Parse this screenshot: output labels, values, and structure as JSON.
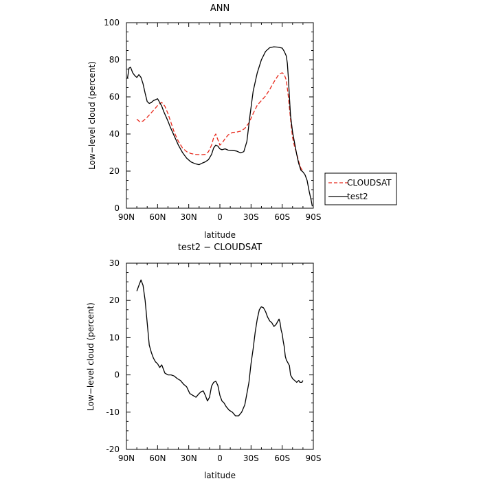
{
  "chart_data": [
    {
      "type": "line",
      "title": "ANN",
      "xlabel": "latitude",
      "ylabel": "Low−level cloud (percent)",
      "xlim": [
        90,
        -90
      ],
      "ylim": [
        0,
        100
      ],
      "x_ticks": [
        {
          "value": 90,
          "label": "90N"
        },
        {
          "value": 60,
          "label": "60N"
        },
        {
          "value": 30,
          "label": "30N"
        },
        {
          "value": 0,
          "label": "0"
        },
        {
          "value": -30,
          "label": "30S"
        },
        {
          "value": -60,
          "label": "60S"
        },
        {
          "value": -90,
          "label": "90S"
        }
      ],
      "y_ticks": [
        0,
        20,
        40,
        60,
        80,
        100
      ],
      "legend": "right",
      "series": [
        {
          "name": "CLOUDSAT",
          "color": "#e8291c",
          "dash": "dashed",
          "x": [
            80,
            77,
            74,
            70,
            66,
            62,
            59,
            56,
            53,
            50,
            47,
            44,
            40,
            36,
            32,
            28,
            24,
            20,
            17,
            14,
            11,
            8,
            6,
            4,
            2,
            0,
            -2,
            -5,
            -8,
            -12,
            -16,
            -20,
            -24,
            -28,
            -32,
            -36,
            -40,
            -44,
            -48,
            -52,
            -56,
            -58,
            -60,
            -62,
            -64,
            -66,
            -68,
            -70,
            -72,
            -74,
            -76,
            -78,
            -80
          ],
          "y": [
            48,
            46.5,
            47,
            49,
            51.5,
            54,
            56,
            57,
            55,
            51,
            46,
            41,
            36,
            32.5,
            30.5,
            29.5,
            29,
            28.9,
            28.8,
            29,
            30.5,
            34,
            38,
            40,
            37,
            34,
            35,
            37.5,
            39.5,
            40.8,
            41,
            41.5,
            43,
            46,
            51,
            55.5,
            58,
            60.5,
            64,
            68,
            71.5,
            72.5,
            73,
            72,
            69,
            60,
            48,
            38,
            33,
            29.5,
            25,
            21.5,
            20
          ]
        },
        {
          "name": "test2",
          "color": "#000000",
          "dash": "solid",
          "x": [
            89,
            87.5,
            86,
            84,
            82,
            80,
            78,
            76,
            74,
            72,
            70,
            68,
            66,
            64,
            62,
            60,
            58,
            56,
            54,
            52,
            50,
            48,
            44,
            40,
            36,
            32,
            28,
            24,
            20,
            17,
            14,
            11,
            8,
            6,
            4,
            2,
            0,
            -2,
            -5,
            -8,
            -12,
            -16,
            -20,
            -23,
            -26,
            -29,
            -32,
            -36,
            -40,
            -44,
            -48,
            -52,
            -56,
            -60,
            -62,
            -64,
            -65,
            -66,
            -67,
            -68,
            -70,
            -72,
            -74,
            -76,
            -78,
            -80,
            -82,
            -84,
            -86,
            -88,
            -89
          ],
          "y": [
            70,
            75.5,
            76,
            73,
            71.5,
            70.5,
            72,
            70.5,
            67,
            62,
            57.5,
            56.5,
            57,
            58,
            58.5,
            59,
            57,
            55,
            52,
            49.5,
            47,
            44,
            39,
            34,
            30,
            27,
            25,
            24,
            23.5,
            24.3,
            25,
            26.2,
            29,
            32.5,
            34,
            33.5,
            32,
            31.5,
            32,
            31.3,
            31.2,
            30.8,
            29.8,
            30.5,
            36,
            50,
            63,
            73,
            80,
            84.5,
            86.5,
            87,
            86.8,
            86.3,
            84.5,
            82,
            78,
            70,
            60,
            50,
            41,
            35,
            29,
            24,
            20.5,
            19.5,
            18,
            15,
            9,
            4,
            1
          ]
        }
      ]
    },
    {
      "type": "line",
      "title": "test2 − CLOUDSAT",
      "xlabel": "latitude",
      "ylabel": "Low−level cloud (percent)",
      "xlim": [
        90,
        -90
      ],
      "ylim": [
        -20,
        30
      ],
      "x_ticks": [
        {
          "value": 90,
          "label": "90N"
        },
        {
          "value": 60,
          "label": "60N"
        },
        {
          "value": 30,
          "label": "30N"
        },
        {
          "value": 0,
          "label": "0"
        },
        {
          "value": -30,
          "label": "30S"
        },
        {
          "value": -60,
          "label": "60S"
        },
        {
          "value": -90,
          "label": "90S"
        }
      ],
      "y_ticks": [
        -20,
        -10,
        0,
        10,
        20,
        30
      ],
      "series": [
        {
          "color": "#000000",
          "dash": "solid",
          "x": [
            80,
            78,
            76,
            74,
            72,
            70,
            68,
            66,
            64,
            62,
            60,
            58,
            56,
            53,
            50,
            47,
            44,
            41,
            38,
            35,
            32,
            29,
            26,
            23,
            20,
            18,
            16,
            14,
            12,
            10,
            8,
            6,
            4,
            2,
            0,
            -2,
            -4,
            -6,
            -9,
            -12,
            -15,
            -18,
            -21,
            -24,
            -26,
            -28,
            -30,
            -32,
            -34,
            -36,
            -38,
            -40,
            -42,
            -44,
            -46,
            -48,
            -50,
            -52,
            -54,
            -56,
            -57,
            -58,
            -59,
            -60,
            -61,
            -62,
            -63,
            -64,
            -65,
            -66,
            -67,
            -68,
            -70,
            -72,
            -74,
            -76,
            -77,
            -78,
            -79,
            -80
          ],
          "y": [
            22.5,
            24,
            25.5,
            24,
            20,
            14,
            8,
            6,
            4.5,
            3.5,
            3,
            2,
            2.7,
            0.5,
            0,
            0,
            -0.3,
            -1,
            -1.5,
            -2.5,
            -3.2,
            -5,
            -5.5,
            -6,
            -5,
            -4.5,
            -4.3,
            -5.5,
            -7,
            -6,
            -3,
            -2,
            -1.7,
            -2.8,
            -5.5,
            -7,
            -7.5,
            -8.5,
            -9.5,
            -10,
            -11,
            -11,
            -10,
            -8,
            -5,
            -2,
            3,
            7,
            11.5,
            15,
            17.5,
            18.3,
            18,
            17,
            15.5,
            14.5,
            14,
            13,
            13.5,
            14.5,
            15,
            14,
            12,
            11,
            9,
            7.5,
            5,
            4,
            3.5,
            3,
            2.5,
            0,
            -1,
            -1.5,
            -2,
            -1.5,
            -2,
            -2,
            -2,
            -1.5
          ]
        }
      ]
    }
  ]
}
